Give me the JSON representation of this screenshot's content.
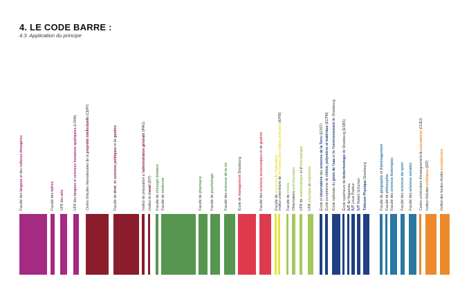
{
  "heading": {
    "title": "4. LE CODE BARRE :",
    "subtitle": "4.3. Application du principe"
  },
  "colors": {
    "purple": "#a52a82",
    "burgundy": "#8a1c2b",
    "green": "#56964f",
    "red": "#de3a4e",
    "yellow": "#e4e23a",
    "lime": "#a3c95c",
    "navy": "#1f3f82",
    "teal": "#2b77a4",
    "orange": "#ec8a2b",
    "text": "#333333"
  },
  "entries": [
    {
      "color": "purple",
      "label": [
        [
          "Faculté des ",
          0
        ],
        [
          "langues",
          1
        ],
        [
          " et des ",
          0
        ],
        [
          "cultures étrangères",
          1
        ]
      ]
    },
    {
      "color": "purple",
      "label": [
        [
          "Faculté des ",
          0
        ],
        [
          "lettres",
          1
        ]
      ]
    },
    {
      "color": "purple",
      "label": [
        [
          "UFR des ",
          0
        ],
        [
          "arts",
          1
        ]
      ]
    },
    {
      "color": "purple",
      "label": [
        [
          "UFR des ",
          0
        ],
        [
          "langues",
          1
        ],
        [
          " et ",
          0
        ],
        [
          "sciences humaines appliquées",
          1
        ],
        [
          " (LSHA)",
          0
        ]
      ]
    },
    {
      "color": "burgundy",
      "label": [
        [
          "Centre d'études internationales de la ",
          0
        ],
        [
          "propriété intellectuelle",
          1
        ],
        [
          " (CEIPI)",
          0
        ]
      ]
    },
    {
      "color": "burgundy",
      "label": [
        [
          "Faculté de ",
          0
        ],
        [
          "droit",
          1
        ],
        [
          ", de ",
          0
        ],
        [
          "sciences politiques",
          1
        ],
        [
          " et de ",
          0
        ],
        [
          "gestion",
          1
        ]
      ]
    },
    {
      "color": "burgundy",
      "label": [
        [
          "Institut de préparation à l'",
          0
        ],
        [
          "administration générale",
          1
        ],
        [
          " (IPAG)",
          0
        ]
      ]
    },
    {
      "color": "burgundy",
      "label": [
        [
          "Institut du ",
          0
        ],
        [
          "travail",
          1
        ],
        [
          " (IDT)",
          0
        ]
      ]
    },
    {
      "color": "green",
      "label": [
        [
          "Faculté de ",
          0
        ],
        [
          "chirurgie dentaire",
          1
        ]
      ]
    },
    {
      "color": "green",
      "label": [
        [
          "Faculté de ",
          0
        ],
        [
          "médecine",
          1
        ]
      ]
    },
    {
      "color": "green",
      "label": [
        [
          "Faculté de ",
          0
        ],
        [
          "pharmacie",
          1
        ]
      ]
    },
    {
      "color": "green",
      "label": [
        [
          "Faculté de ",
          0
        ],
        [
          "psychologie",
          1
        ]
      ]
    },
    {
      "color": "green",
      "label": [
        [
          "Faculté des ",
          0
        ],
        [
          "sciences de la vie",
          1
        ]
      ]
    },
    {
      "color": "red",
      "label": [
        [
          "École de ",
          0
        ],
        [
          "management",
          1
        ],
        [
          " Strasbourg",
          0
        ]
      ]
    },
    {
      "color": "red",
      "label": [
        [
          "Faculté des ",
          0
        ],
        [
          "sciences économiques",
          1
        ],
        [
          " et de ",
          0
        ],
        [
          "gestion",
          1
        ]
      ]
    },
    {
      "color": "yellow",
      "label": [
        [
          "Faculté de ",
          0
        ],
        [
          "sciences de l'éducation",
          1
        ]
      ]
    },
    {
      "color": "yellow",
      "label": [
        [
          "Institut universitaire de ",
          0
        ],
        [
          "formation des maîtres d'Alsace",
          1
        ],
        [
          " (IUFM)",
          0
        ]
      ]
    },
    {
      "color": "lime",
      "label": [
        [
          "Faculté de ",
          0
        ],
        [
          "chimie",
          1
        ]
      ]
    },
    {
      "color": "lime",
      "label": [
        [
          "Observatoire ",
          0
        ],
        [
          "astronomique",
          1
        ]
      ]
    },
    {
      "color": "lime",
      "label": [
        [
          "UFR de ",
          0
        ],
        [
          "mathématique",
          1
        ],
        [
          " et d'",
          0
        ],
        [
          "informatique",
          1
        ]
      ]
    },
    {
      "color": "lime",
      "label": [
        [
          "UFR ",
          0
        ],
        [
          "physique",
          1
        ],
        [
          " et ",
          0
        ],
        [
          "ingénierie",
          1
        ]
      ]
    },
    {
      "color": "navy",
      "label": [
        [
          "École et ",
          0
        ],
        [
          "observatoire",
          1
        ],
        [
          " des ",
          0
        ],
        [
          "sciences de la Terre",
          1
        ],
        [
          " (EOST)",
          0
        ]
      ]
    },
    {
      "color": "navy",
      "label": [
        [
          "École européenne de ",
          0
        ],
        [
          "chimie, polymères et matériaux",
          1
        ],
        [
          " (ECPM)",
          0
        ]
      ]
    },
    {
      "color": "navy",
      "label": [
        [
          "École nationale du ",
          0
        ],
        [
          "génie de l'eau",
          1
        ],
        [
          " et de ",
          0
        ],
        [
          "l'environnement",
          1
        ],
        [
          " de Strasbourg",
          0
        ]
      ]
    },
    {
      "color": "navy",
      "label": [
        [
          "École supérieure de ",
          0
        ],
        [
          "biotechnologie",
          1
        ],
        [
          " de Strasbourg (ESBS)",
          0
        ]
      ]
    },
    {
      "color": "navy",
      "label": [
        [
          "IUT",
          1
        ],
        [
          " de Haguenau",
          0
        ]
      ]
    },
    {
      "color": "navy",
      "label": [
        [
          "IUT",
          1
        ],
        [
          " Louis Pasteur",
          0
        ]
      ]
    },
    {
      "color": "navy",
      "label": [
        [
          "IUT",
          1
        ],
        [
          " Robert Schuman",
          0
        ]
      ]
    },
    {
      "color": "navy",
      "label": [
        [
          "Télécom Physique",
          1
        ],
        [
          " Strasbourg",
          0
        ]
      ]
    },
    {
      "color": "teal",
      "label": [
        [
          "Faculté de ",
          0
        ],
        [
          "géographie",
          1
        ],
        [
          " et d'",
          0
        ],
        [
          "aménagement",
          1
        ]
      ]
    },
    {
      "color": "teal",
      "label": [
        [
          "Faculté de ",
          0
        ],
        [
          "philosophie",
          1
        ]
      ]
    },
    {
      "color": "teal",
      "label": [
        [
          "Faculté des ",
          0
        ],
        [
          "sciences historiques",
          1
        ]
      ]
    },
    {
      "color": "teal",
      "label": [
        [
          "Faculté des ",
          0
        ],
        [
          "sciences du sport",
          1
        ]
      ]
    },
    {
      "color": "teal",
      "label": [
        [
          "Faculté des ",
          0
        ],
        [
          "sciences sociales",
          1
        ]
      ]
    },
    {
      "color": "orange",
      "label": [
        [
          "Centre universitaire d'enseignement du ",
          0
        ],
        [
          "journalisme",
          1
        ],
        [
          " (CUEJ)",
          0
        ]
      ]
    },
    {
      "color": "orange",
      "label": [
        [
          "Institut d'études ",
          0
        ],
        [
          "politiques",
          1
        ],
        [
          " (IEP)",
          0
        ]
      ]
    },
    {
      "color": "orange",
      "label": [
        [
          "Institut des hautes études ",
          0
        ],
        [
          "européennes",
          1
        ]
      ]
    }
  ]
}
